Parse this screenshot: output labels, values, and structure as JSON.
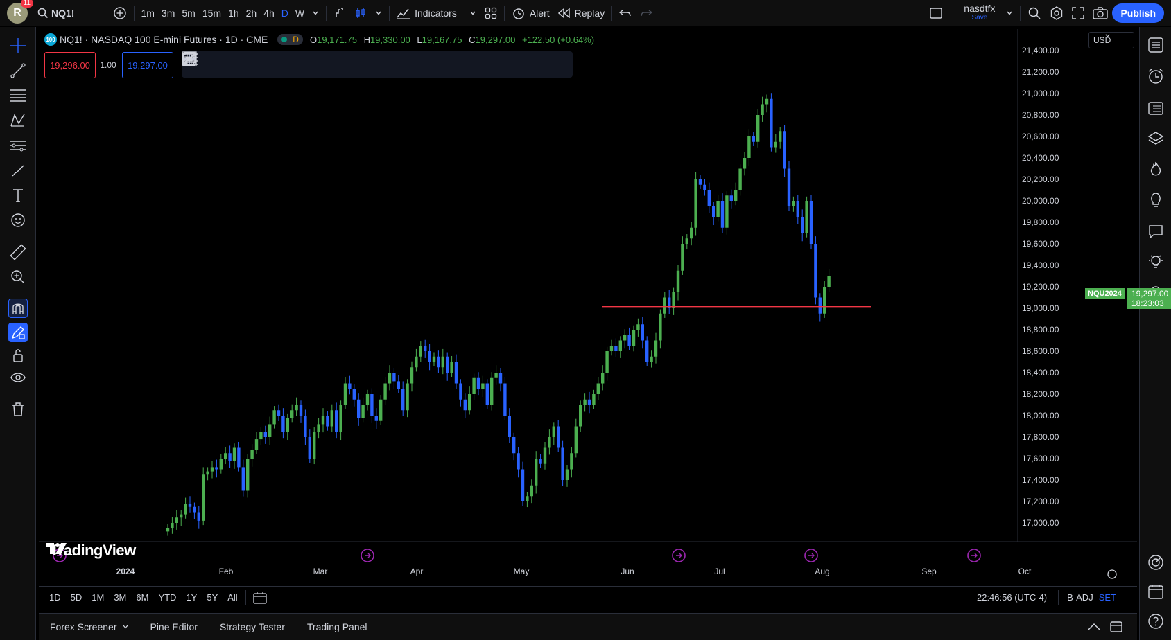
{
  "topbar": {
    "avatar_letter": "R",
    "notifications": "11",
    "symbol": "NQ1!",
    "timeframes": [
      "1m",
      "3m",
      "5m",
      "15m",
      "1h",
      "2h",
      "4h",
      "D",
      "W"
    ],
    "active_timeframe": "D",
    "indicators_label": "Indicators",
    "alert_label": "Alert",
    "replay_label": "Replay",
    "username": "nasdtfx",
    "save_label": "Save",
    "publish_label": "Publish"
  },
  "legend": {
    "symbol_icon_text": "100",
    "title": "NQ1! · NASDAQ 100 E-mini Futures · 1D · CME",
    "status_letter": "D",
    "o_label": "O",
    "o": "19,171.75",
    "h_label": "H",
    "h": "19,330.00",
    "l_label": "L",
    "l": "19,167.75",
    "c_label": "C",
    "c": "19,297.00",
    "change": "+122.50 (+0.64%)"
  },
  "order": {
    "sell": "19,296.00",
    "qty": "1.00",
    "buy": "19,297.00"
  },
  "currency": "USD",
  "price_tag": {
    "name": "NQU2024",
    "price": "19,297.00",
    "countdown": "18:23:03"
  },
  "watermark": "TradingView",
  "chart_data": {
    "type": "candlestick",
    "y_ticks": [
      "21,400.00",
      "21,200.00",
      "21,000.00",
      "20,800.00",
      "20,600.00",
      "20,400.00",
      "20,200.00",
      "20,000.00",
      "19,800.00",
      "19,600.00",
      "19,400.00",
      "19,200.00",
      "19,000.00",
      "18,800.00",
      "18,600.00",
      "18,400.00",
      "18,200.00",
      "18,000.00",
      "17,800.00",
      "17,600.00",
      "17,400.00",
      "17,200.00",
      "17,000.00"
    ],
    "x_ticks": [
      "2024",
      "Feb",
      "Mar",
      "Apr",
      "May",
      "Jun",
      "Jul",
      "Aug",
      "Sep",
      "Oct"
    ],
    "ylim": [
      16900,
      21450
    ],
    "horizontal_line": {
      "value": 19015,
      "color": "#f23645"
    },
    "up_color": "#4caf50",
    "down_color": "#2962ff",
    "closes": [
      16950,
      17000,
      17050,
      17080,
      17180,
      17150,
      17100,
      17020,
      17450,
      17480,
      17520,
      17500,
      17600,
      17650,
      17580,
      17700,
      17520,
      17300,
      17600,
      17680,
      17780,
      17850,
      17800,
      17920,
      18050,
      18000,
      17850,
      17980,
      18050,
      18100,
      18000,
      17800,
      17600,
      17850,
      17920,
      18000,
      17900,
      18050,
      17850,
      18100,
      18300,
      18250,
      18150,
      17980,
      18100,
      18200,
      18000,
      17950,
      18150,
      18300,
      18400,
      18320,
      18250,
      18050,
      18300,
      18450,
      18550,
      18650,
      18600,
      18500,
      18550,
      18450,
      18550,
      18400,
      18500,
      18300,
      18150,
      18050,
      18200,
      18350,
      18250,
      18300,
      18100,
      18350,
      18400,
      18300,
      18000,
      17800,
      17650,
      17500,
      17200,
      17250,
      17350,
      17600,
      17550,
      17700,
      17800,
      17900,
      17700,
      17400,
      17500,
      17650,
      17900,
      18100,
      18150,
      18100,
      18200,
      18300,
      18400,
      18600,
      18650,
      18600,
      18700,
      18750,
      18650,
      18800,
      18850,
      18700,
      18500,
      18550,
      18700,
      18950,
      19100,
      19000,
      19150,
      19350,
      19600,
      19650,
      19750,
      20200,
      20150,
      20100,
      19950,
      19850,
      20000,
      19750,
      20050,
      20000,
      20100,
      20300,
      20400,
      20600,
      20550,
      20800,
      20900,
      20950,
      20500,
      20550,
      20650,
      20300,
      19950,
      20000,
      19850,
      19700,
      20000,
      19600,
      19100,
      18950,
      19200,
      19297
    ],
    "x_start": 186,
    "x_step": 6.4
  },
  "bottom": {
    "ranges": [
      "1D",
      "5D",
      "1M",
      "3M",
      "6M",
      "YTD",
      "1Y",
      "5Y",
      "All"
    ],
    "clock": "22:46:56 (UTC-4)",
    "badj": "B-ADJ",
    "set": "SET",
    "panels": [
      "Forex Screener",
      "Pine Editor",
      "Strategy Tester",
      "Trading Panel"
    ]
  }
}
